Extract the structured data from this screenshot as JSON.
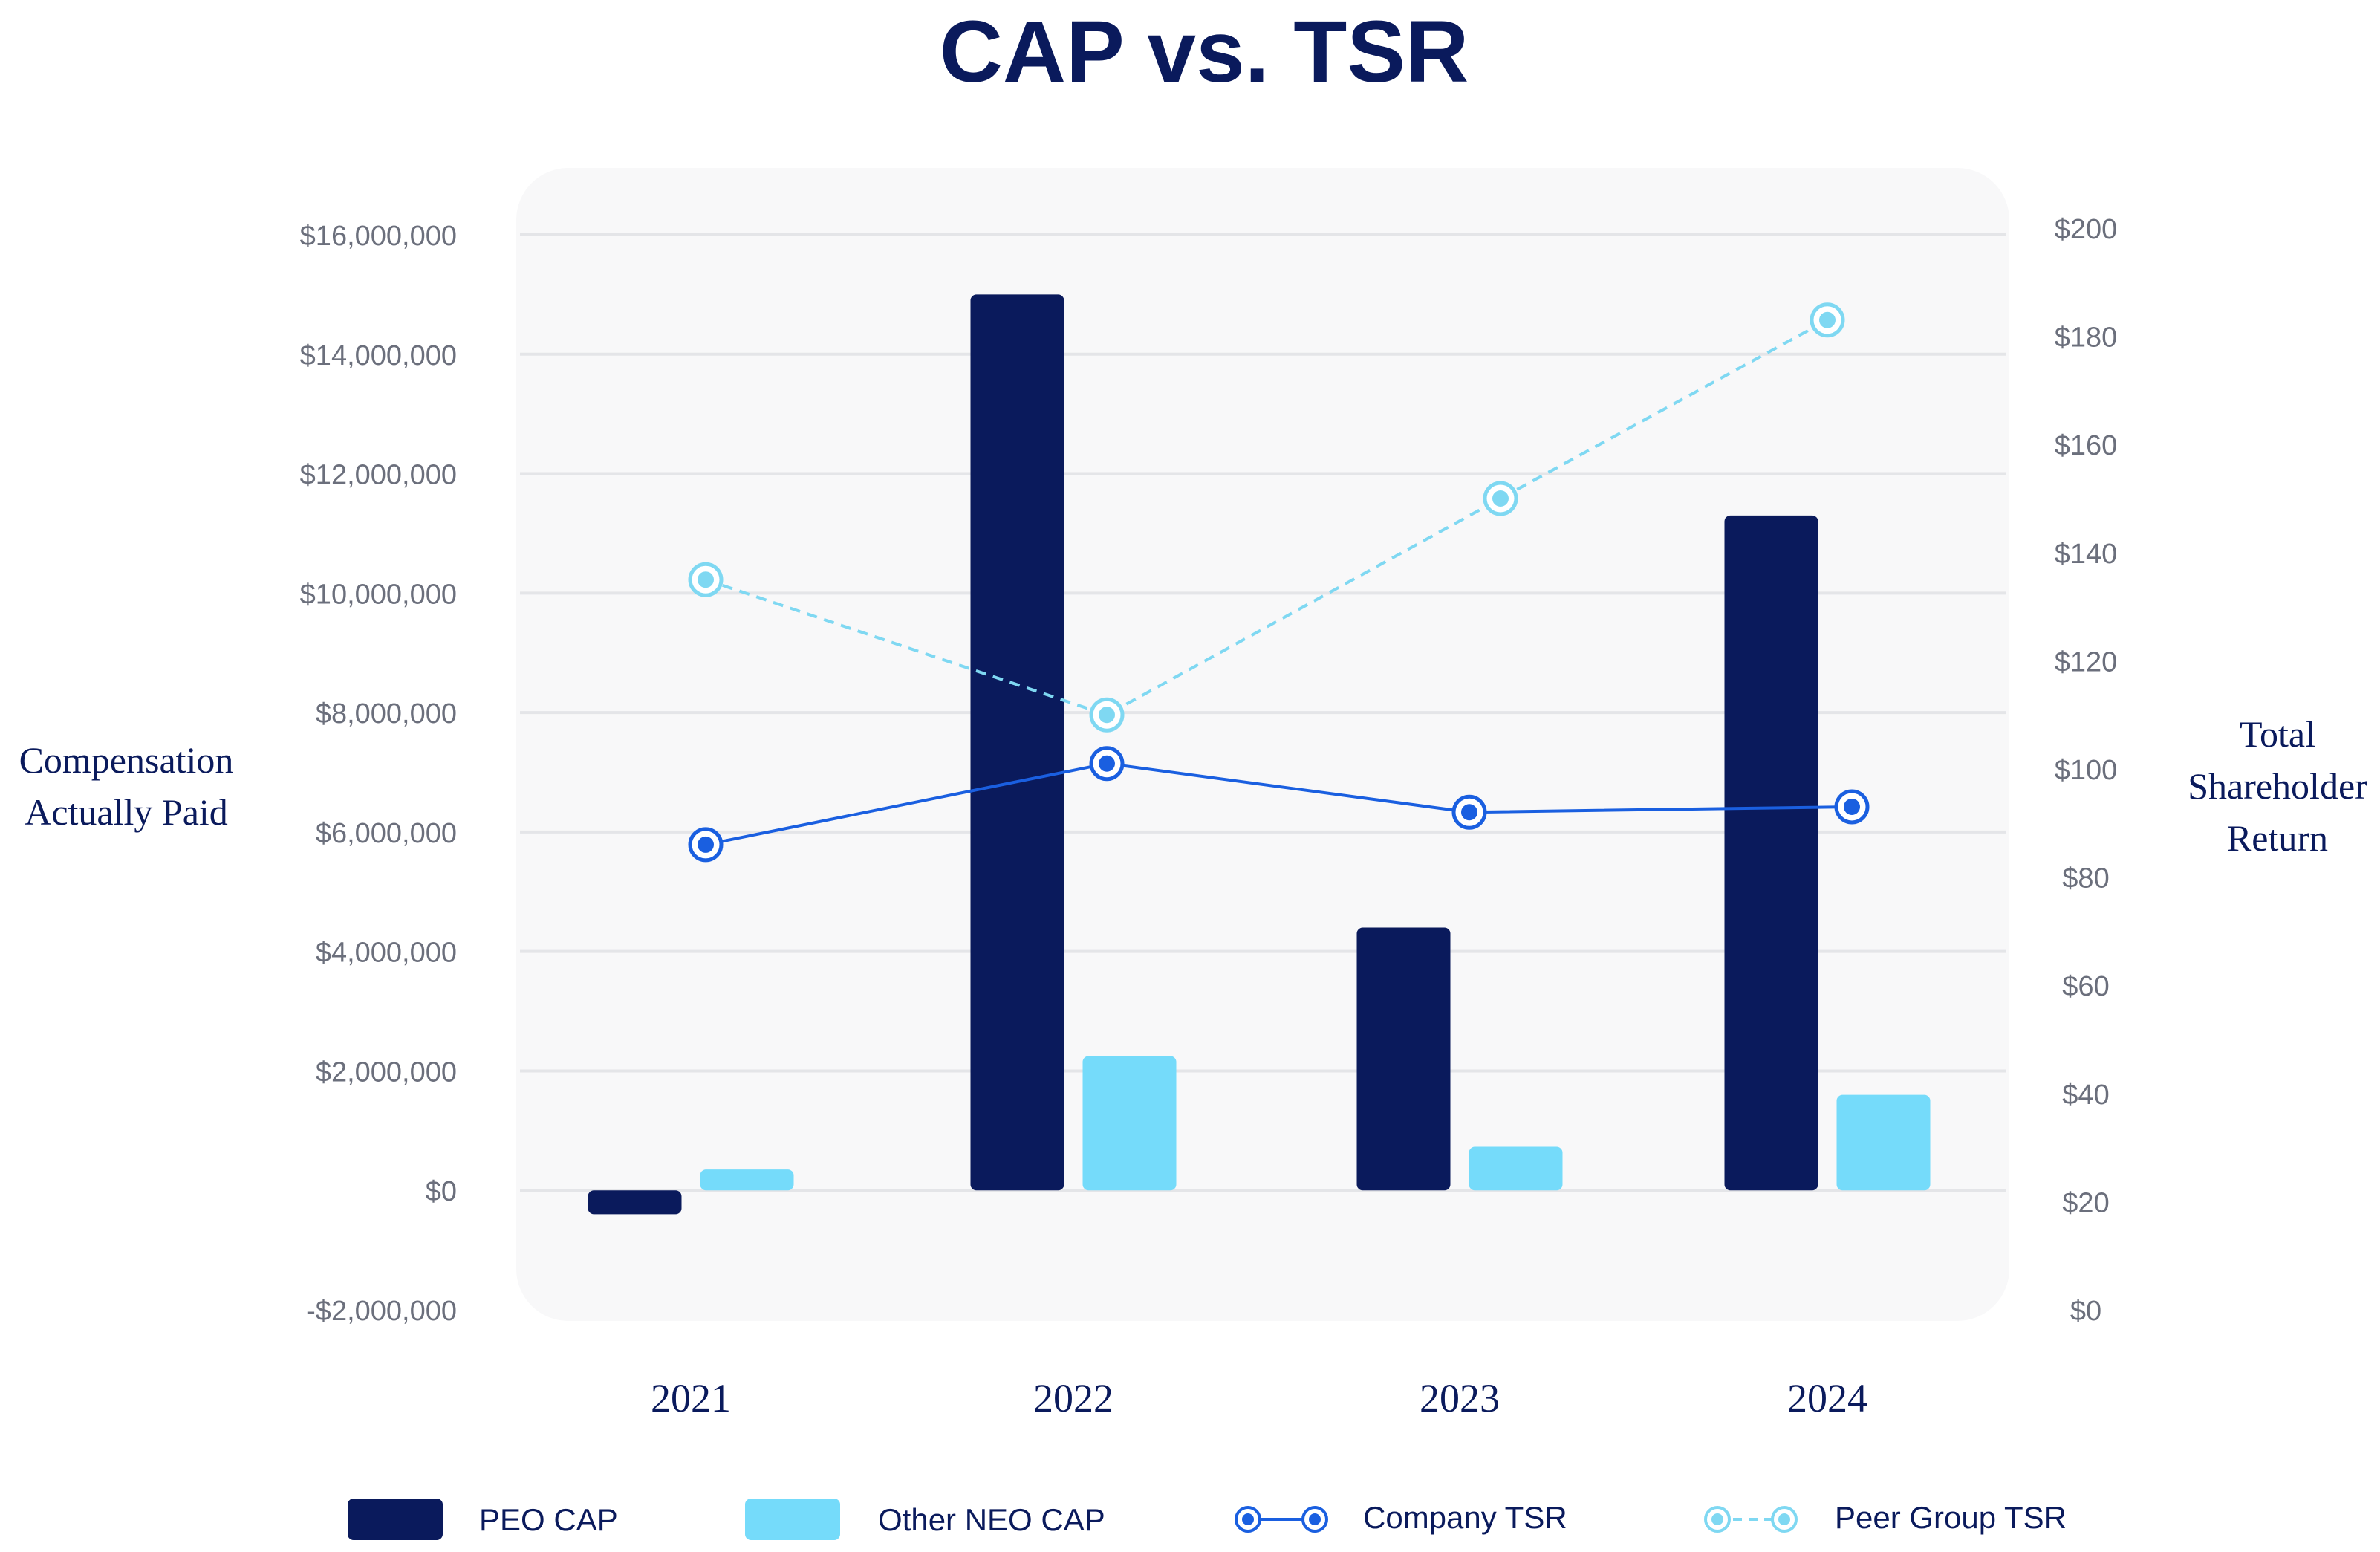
{
  "chart_data": {
    "type": "bar",
    "title": "CAP vs. TSR",
    "categories": [
      "2021",
      "2022",
      "2023",
      "2024"
    ],
    "y_left": {
      "label_lines": [
        "Compensation",
        "Actually Paid"
      ],
      "min": -2000000,
      "max": 16000000,
      "ticks": [
        -2000000,
        0,
        2000000,
        4000000,
        6000000,
        8000000,
        10000000,
        12000000,
        14000000,
        16000000
      ],
      "tick_labels": [
        "-$2,000,000",
        "$0",
        "$2,000,000",
        "$4,000,000",
        "$6,000,000",
        "$8,000,000",
        "$10,000,000",
        "$12,000,000",
        "$14,000,000",
        "$16,000,000"
      ]
    },
    "y_right": {
      "label_lines": [
        "Total",
        "Shareholder",
        "Return"
      ],
      "min": 0,
      "max": 200,
      "ticks": [
        0,
        20,
        40,
        60,
        80,
        100,
        120,
        140,
        160,
        180,
        200
      ],
      "tick_labels": [
        "$0",
        "$20",
        "$40",
        "$60",
        "$80",
        "$100",
        "$120",
        "$140",
        "$160",
        "$180",
        "$200"
      ]
    },
    "bar_series": [
      {
        "name": "PEO CAP",
        "color": "#0a1a5c",
        "values": [
          -400000,
          15000000,
          4400000,
          11300000
        ]
      },
      {
        "name": "Other NEO CAP",
        "color": "#75dbfa",
        "values": [
          350000,
          2250000,
          730000,
          1600000
        ]
      }
    ],
    "line_series": [
      {
        "name": "Company TSR",
        "color": "#1a5fe0",
        "dashed": false,
        "values": [
          86,
          101,
          92,
          93
        ]
      },
      {
        "name": "Peer Group TSR",
        "color": "#7fd8f2",
        "dashed": true,
        "values": [
          135,
          110,
          150,
          183
        ]
      }
    ],
    "grid": true,
    "legend_position": "bottom"
  }
}
